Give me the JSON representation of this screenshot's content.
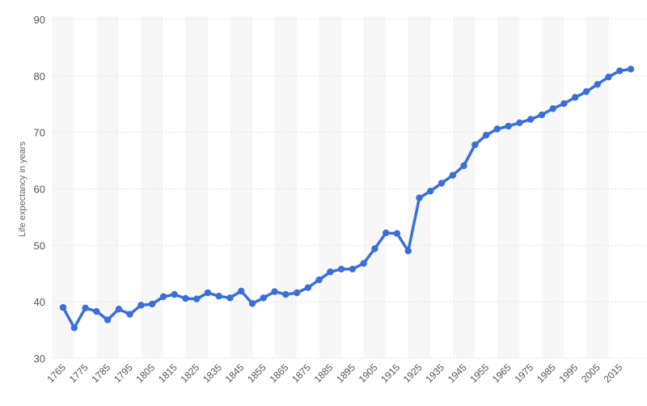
{
  "chart_data": {
    "type": "line",
    "title": "",
    "xlabel": "",
    "ylabel": "Life expectancy in years",
    "ylim": [
      30,
      90
    ],
    "y_ticks": [
      "30",
      "40",
      "50",
      "60",
      "70",
      "80",
      "90"
    ],
    "x_ticks": [
      "1765",
      "1775",
      "1785",
      "1795",
      "1805",
      "1815",
      "1825",
      "1835",
      "1845",
      "1855",
      "1865",
      "1875",
      "1885",
      "1895",
      "1905",
      "1915",
      "1925",
      "1935",
      "1945",
      "1955",
      "1965",
      "1975",
      "1985",
      "1995",
      "2005",
      "2015"
    ],
    "grid": true,
    "legend": "none",
    "line_color": "#3a6fd8",
    "series": [
      {
        "x": [
          1765,
          1770,
          1775,
          1780,
          1785,
          1790,
          1795,
          1800,
          1805,
          1810,
          1815,
          1820,
          1825,
          1830,
          1835,
          1840,
          1845,
          1850,
          1855,
          1860,
          1865,
          1870,
          1875,
          1880,
          1885,
          1890,
          1895,
          1900,
          1905,
          1910,
          1915,
          1920,
          1925,
          1930,
          1935,
          1940,
          1945,
          1950,
          1955,
          1960,
          1965,
          1970,
          1975,
          1980,
          1985,
          1990,
          1995,
          2000,
          2005,
          2010,
          2015,
          2020
        ],
        "values": [
          39.0,
          35.4,
          38.9,
          38.3,
          36.8,
          38.7,
          37.8,
          39.4,
          39.6,
          40.9,
          41.3,
          40.6,
          40.5,
          41.6,
          41.0,
          40.7,
          41.9,
          39.7,
          40.7,
          41.8,
          41.3,
          41.6,
          42.5,
          43.9,
          45.3,
          45.8,
          45.8,
          46.8,
          49.4,
          52.2,
          52.1,
          49.0,
          58.4,
          59.6,
          61.0,
          62.4,
          64.1,
          67.8,
          69.5,
          70.6,
          71.1,
          71.7,
          72.3,
          73.1,
          74.2,
          75.1,
          76.2,
          77.2,
          78.5,
          79.8,
          80.9,
          81.2
        ]
      }
    ]
  }
}
